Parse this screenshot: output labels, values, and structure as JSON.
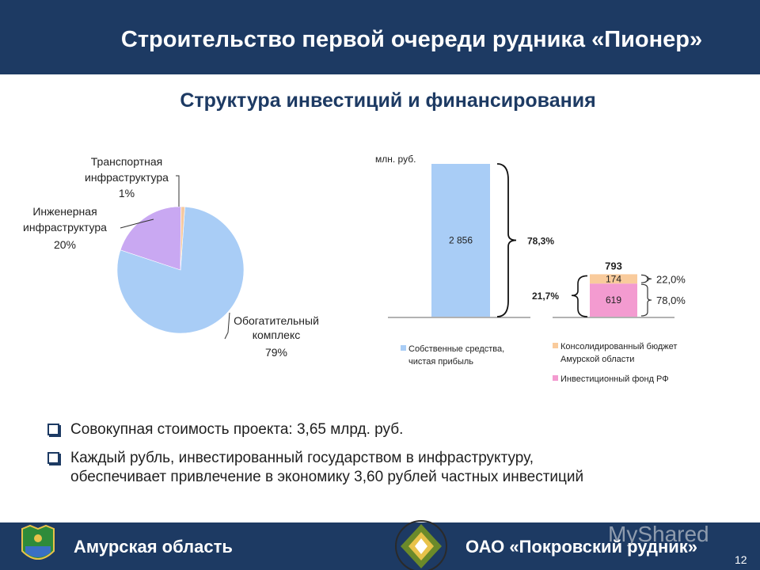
{
  "header": {
    "title": "Строительство первой очереди рудника «Пионер»"
  },
  "subtitle": "Структура инвестиций и финансирования",
  "colors": {
    "navy": "#1d3a63",
    "pie_blue": "#a9cdf6",
    "pie_purple": "#c9a8f2",
    "pie_peach": "#f6c9a0",
    "bar_blue": "#a9cdf6",
    "bar_peach": "#f9cb9c",
    "bar_pink": "#f39bd0"
  },
  "chart_data": [
    {
      "type": "pie",
      "slices": [
        {
          "label_lines": [
            "Обогатительный",
            "комплекс",
            "79%"
          ],
          "value": 79
        },
        {
          "label_lines": [
            "Инженерная",
            "инфраструктура",
            "20%"
          ],
          "value": 20
        },
        {
          "label_lines": [
            "Транспортная",
            "инфраструктура",
            "1%"
          ],
          "value": 1
        }
      ]
    },
    {
      "type": "bar",
      "unit_label": "млн. руб.",
      "stacks": [
        {
          "segments": [
            {
              "legend_index": 0,
              "value": 2856,
              "label": "2 856"
            }
          ],
          "brace_label": "78,3%"
        },
        {
          "total_label": "793",
          "segments": [
            {
              "legend_index": 2,
              "value": 619,
              "label": "619",
              "share": "78,0%"
            },
            {
              "legend_index": 1,
              "value": 174,
              "label": "174",
              "share": "22,0%"
            }
          ],
          "brace_label": "21,7%"
        }
      ],
      "legend": [
        {
          "label_lines": [
            "Собственные средства,",
            "чистая прибыль"
          ]
        },
        {
          "label_lines": [
            "Консолидированный бюджет",
            "Амурской области"
          ]
        },
        {
          "label_lines": [
            "Инвестиционный фонд РФ"
          ]
        }
      ]
    }
  ],
  "bullets": [
    {
      "lines": [
        "Совокупная стоимость проекта: 3,65 млрд. руб."
      ]
    },
    {
      "lines": [
        "Каждый рубль, инвестированный государством в инфраструктуру,",
        "обеспечивает привлечение в экономику 3,60 рублей частных инвестиций"
      ]
    }
  ],
  "footer": {
    "left": "Амурская область",
    "right": "ОАО «Покровский рудник»",
    "page": "12",
    "watermark": "MyShared"
  }
}
